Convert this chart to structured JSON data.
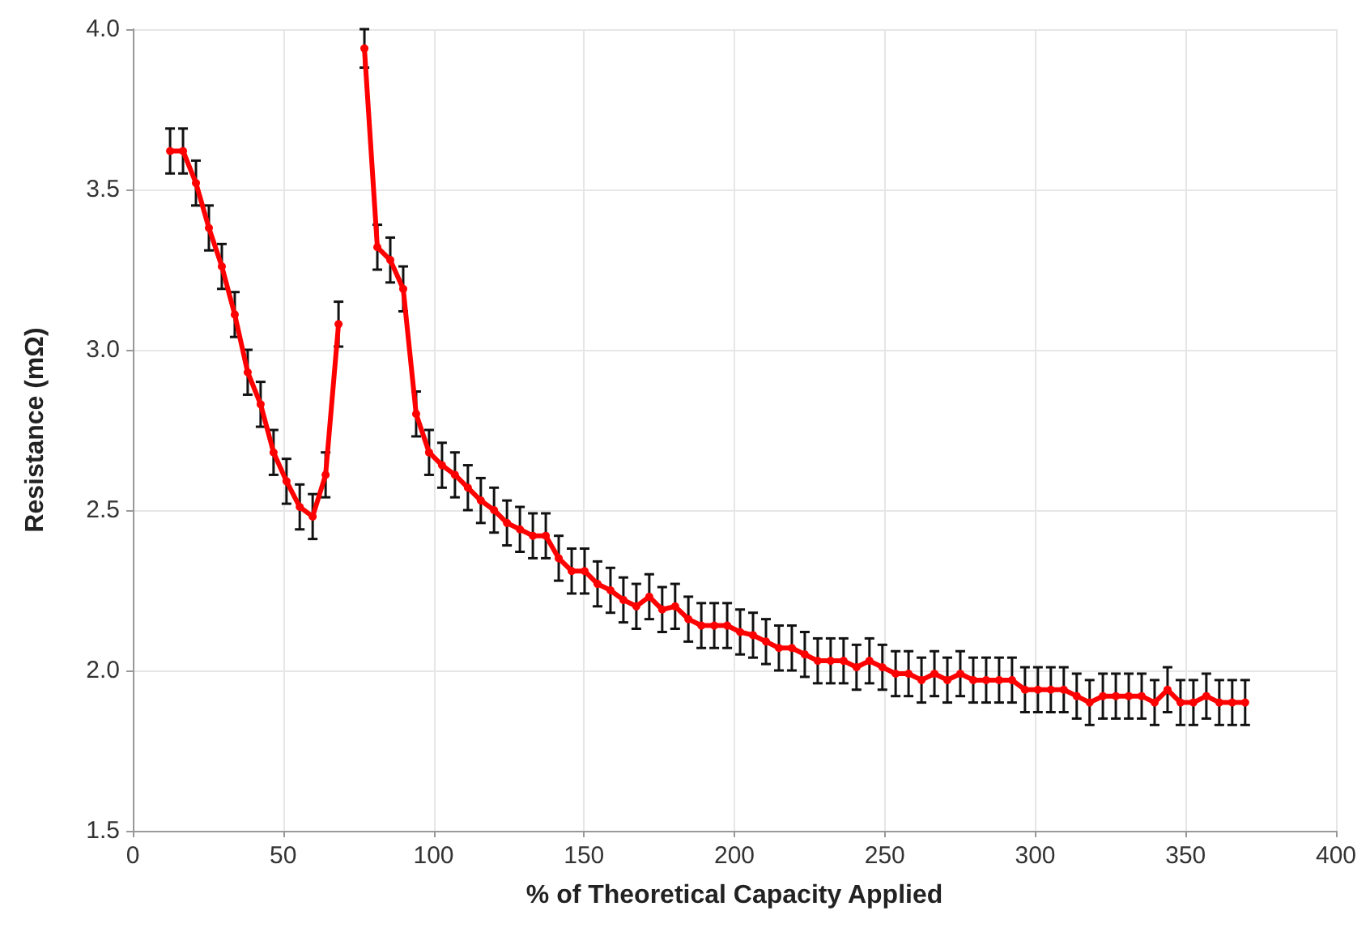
{
  "chart_data": {
    "type": "line",
    "xlabel": "% of Theoretical Capacity Applied",
    "ylabel": "Resistance (mΩ)",
    "x": [
      12.4,
      16.7,
      21.0,
      25.3,
      29.6,
      33.9,
      38.2,
      42.5,
      46.8,
      51.1,
      55.5,
      59.8,
      64.1,
      68.4,
      72.7,
      77.0,
      81.3,
      85.6,
      89.9,
      94.2,
      98.5,
      102.8,
      107.1,
      111.4,
      115.7,
      120.1,
      124.4,
      128.7,
      133.0,
      137.3,
      141.6,
      145.9,
      150.2,
      154.5,
      158.8,
      163.1,
      167.4,
      171.7,
      176.0,
      180.3,
      184.7,
      189.0,
      193.3,
      197.6,
      201.9,
      206.2,
      210.5,
      214.8,
      219.1,
      223.4,
      227.7,
      232.0,
      236.3,
      240.6,
      244.9,
      249.2,
      253.6,
      257.9,
      262.2,
      266.5,
      270.8,
      275.1,
      279.4,
      283.7,
      288.0,
      292.3,
      296.6,
      300.9,
      305.2,
      309.5,
      313.8,
      318.1,
      322.5,
      326.8,
      331.1,
      335.4,
      339.7,
      344.0,
      348.3,
      352.6,
      356.9,
      361.2,
      365.5,
      369.8
    ],
    "series": [
      {
        "color": "#ff0000",
        "values": [
          3.62,
          3.62,
          3.52,
          3.38,
          3.26,
          3.11,
          2.93,
          2.83,
          2.68,
          2.59,
          2.51,
          2.48,
          2.61,
          3.08,
          null,
          3.94,
          3.32,
          3.28,
          3.19,
          2.8,
          2.68,
          2.64,
          2.61,
          2.57,
          2.53,
          2.5,
          2.46,
          2.44,
          2.42,
          2.42,
          2.35,
          2.31,
          2.31,
          2.27,
          2.25,
          2.22,
          2.2,
          2.23,
          2.19,
          2.2,
          2.16,
          2.14,
          2.14,
          2.14,
          2.12,
          2.11,
          2.09,
          2.07,
          2.07,
          2.05,
          2.03,
          2.03,
          2.03,
          2.01,
          2.03,
          2.01,
          1.99,
          1.99,
          1.97,
          1.99,
          1.97,
          1.99,
          1.97,
          1.97,
          1.97,
          1.97,
          1.94,
          1.94,
          1.94,
          1.94,
          1.92,
          1.9,
          1.92,
          1.92,
          1.92,
          1.92,
          1.9,
          1.94,
          1.9,
          1.9,
          1.92,
          1.9,
          1.9,
          1.9
        ],
        "errors": [
          0.07,
          0.07,
          0.07,
          0.07,
          0.07,
          0.07,
          0.07,
          0.07,
          0.07,
          0.07,
          0.07,
          0.07,
          0.07,
          0.07,
          null,
          [
            3.88,
            4.0
          ],
          0.07,
          0.07,
          0.07,
          0.07,
          0.07,
          0.07,
          0.07,
          0.07,
          0.07,
          0.07,
          0.07,
          0.07,
          0.07,
          0.07,
          0.07,
          0.07,
          0.07,
          0.07,
          0.07,
          0.07,
          0.07,
          0.07,
          0.07,
          0.07,
          0.07,
          0.07,
          0.07,
          0.07,
          0.07,
          0.07,
          0.07,
          0.07,
          0.07,
          0.07,
          0.07,
          0.07,
          0.07,
          0.07,
          0.07,
          0.07,
          0.07,
          0.07,
          0.07,
          0.07,
          0.07,
          0.07,
          0.07,
          0.07,
          0.07,
          0.07,
          0.07,
          0.07,
          0.07,
          0.07,
          0.07,
          0.07,
          0.07,
          0.07,
          0.07,
          0.07,
          0.07,
          0.07,
          0.07,
          0.07,
          0.07,
          0.07,
          0.07,
          0.07
        ]
      }
    ],
    "xlim": [
      0,
      400
    ],
    "xticks": [
      0,
      50,
      100,
      150,
      200,
      250,
      300,
      350,
      400
    ],
    "ylim": [
      1.5,
      4.0
    ],
    "yticks": [
      {
        "value": 1.5,
        "label": "1.5"
      },
      {
        "value": 2.0,
        "label": "2.0"
      },
      {
        "value": 2.5,
        "label": "2.5"
      },
      {
        "value": 3.0,
        "label": "3.0"
      },
      {
        "value": 3.5,
        "label": "3.5"
      },
      {
        "value": 4.0,
        "label": "4.0"
      }
    ],
    "grid": true,
    "marker": "circle",
    "line_style": "solid"
  }
}
